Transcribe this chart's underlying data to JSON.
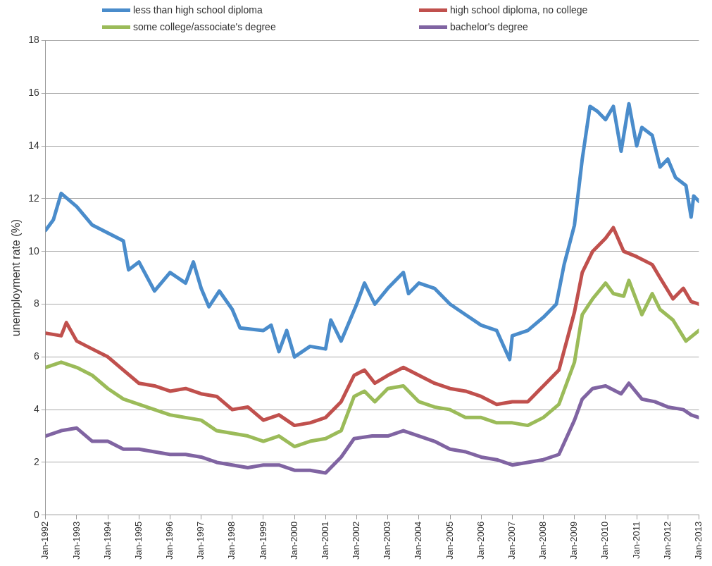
{
  "chart_data": {
    "type": "line",
    "ylabel": "unemployment rate (%)",
    "xlim": [
      "1992-01",
      "2013-01"
    ],
    "xticks": [
      {
        "value": "1992-01",
        "label": "Jan-1992"
      },
      {
        "value": "1993-01",
        "label": "Jan-1993"
      },
      {
        "value": "1994-01",
        "label": "Jan-1994"
      },
      {
        "value": "1995-01",
        "label": "Jan-1995"
      },
      {
        "value": "1996-01",
        "label": "Jan-1996"
      },
      {
        "value": "1997-01",
        "label": "Jan-1997"
      },
      {
        "value": "1998-01",
        "label": "Jan-1998"
      },
      {
        "value": "1999-01",
        "label": "Jan-1999"
      },
      {
        "value": "2000-01",
        "label": "Jan-2000"
      },
      {
        "value": "2001-01",
        "label": "Jan-2001"
      },
      {
        "value": "2002-01",
        "label": "Jan-2002"
      },
      {
        "value": "2003-01",
        "label": "Jan-2003"
      },
      {
        "value": "2004-01",
        "label": "Jan-2004"
      },
      {
        "value": "2005-01",
        "label": "Jan-2005"
      },
      {
        "value": "2006-01",
        "label": "Jan-2006"
      },
      {
        "value": "2007-01",
        "label": "Jan-2007"
      },
      {
        "value": "2008-01",
        "label": "Jan-2008"
      },
      {
        "value": "2009-01",
        "label": "Jan-2009"
      },
      {
        "value": "2010-01",
        "label": "Jan-2010"
      },
      {
        "value": "2011-01",
        "label": "Jan-2011"
      },
      {
        "value": "2012-01",
        "label": "Jan-2012"
      },
      {
        "value": "2013-01",
        "label": "Jan-2013"
      }
    ],
    "ylim": [
      0,
      18
    ],
    "yticks": [
      0,
      2,
      4,
      6,
      8,
      10,
      12,
      14,
      16,
      18
    ],
    "grid": "y",
    "legend": "top",
    "marker": "none",
    "line_style": "solid",
    "series": [
      {
        "name": "less than high school diploma",
        "color": "#4a8ccb",
        "x": [
          "1992-01",
          "1992-04",
          "1992-07",
          "1993-01",
          "1993-07",
          "1994-01",
          "1994-07",
          "1994-09",
          "1995-01",
          "1995-07",
          "1996-01",
          "1996-07",
          "1996-10",
          "1997-01",
          "1997-04",
          "1997-08",
          "1998-01",
          "1998-04",
          "1999-01",
          "1999-04",
          "1999-07",
          "1999-10",
          "2000-01",
          "2000-07",
          "2001-01",
          "2001-03",
          "2001-07",
          "2002-01",
          "2002-04",
          "2002-08",
          "2003-01",
          "2003-07",
          "2003-09",
          "2004-01",
          "2004-07",
          "2005-01",
          "2005-07",
          "2006-01",
          "2006-07",
          "2006-12",
          "2007-01",
          "2007-07",
          "2008-01",
          "2008-06",
          "2008-09",
          "2009-01",
          "2009-04",
          "2009-07",
          "2009-10",
          "2010-01",
          "2010-04",
          "2010-07",
          "2010-10",
          "2011-01",
          "2011-03",
          "2011-07",
          "2011-10",
          "2012-01",
          "2012-04",
          "2012-08",
          "2012-10",
          "2012-11",
          "2013-01"
        ],
        "values": [
          10.8,
          11.2,
          12.2,
          11.7,
          11,
          10.7,
          10.4,
          9.3,
          9.6,
          8.5,
          9.2,
          8.8,
          9.6,
          8.6,
          7.9,
          8.5,
          7.8,
          7.1,
          7,
          7.2,
          6.2,
          7,
          6,
          6.4,
          6.3,
          7.4,
          6.6,
          8,
          8.8,
          8,
          8.6,
          9.2,
          8.4,
          8.8,
          8.6,
          8,
          7.6,
          7.2,
          7,
          5.9,
          6.8,
          7,
          7.5,
          8,
          9.5,
          11,
          13.5,
          15.5,
          15.3,
          15,
          15.5,
          13.8,
          15.6,
          14,
          14.7,
          14.4,
          13.2,
          13.5,
          12.8,
          12.5,
          11.3,
          12.1,
          11.9
        ]
      },
      {
        "name": "high school diploma, no college",
        "color": "#c0504d",
        "x": [
          "1992-01",
          "1992-07",
          "1992-09",
          "1993-01",
          "1993-07",
          "1994-01",
          "1994-07",
          "1995-01",
          "1995-07",
          "1996-01",
          "1996-07",
          "1997-01",
          "1997-07",
          "1998-01",
          "1998-07",
          "1999-01",
          "1999-07",
          "2000-01",
          "2000-07",
          "2001-01",
          "2001-07",
          "2001-12",
          "2002-04",
          "2002-08",
          "2003-01",
          "2003-07",
          "2004-01",
          "2004-07",
          "2005-01",
          "2005-07",
          "2006-01",
          "2006-07",
          "2007-01",
          "2007-07",
          "2008-01",
          "2008-07",
          "2009-01",
          "2009-04",
          "2009-08",
          "2010-01",
          "2010-04",
          "2010-08",
          "2011-01",
          "2011-07",
          "2011-10",
          "2012-03",
          "2012-07",
          "2012-10",
          "2013-01"
        ],
        "values": [
          6.9,
          6.8,
          7.3,
          6.6,
          6.3,
          6,
          5.5,
          5,
          4.9,
          4.7,
          4.8,
          4.6,
          4.5,
          4,
          4.1,
          3.6,
          3.8,
          3.4,
          3.5,
          3.7,
          4.3,
          5.3,
          5.5,
          5,
          5.3,
          5.6,
          5.3,
          5,
          4.8,
          4.7,
          4.5,
          4.2,
          4.3,
          4.3,
          4.9,
          5.5,
          7.7,
          9.2,
          10,
          10.5,
          10.9,
          10,
          9.8,
          9.5,
          9,
          8.2,
          8.6,
          8.1,
          8
        ]
      },
      {
        "name": "some college/associate's degree",
        "color": "#9bbb59",
        "x": [
          "1992-01",
          "1992-07",
          "1993-01",
          "1993-07",
          "1994-01",
          "1994-07",
          "1995-01",
          "1995-07",
          "1996-01",
          "1996-07",
          "1997-01",
          "1997-07",
          "1998-01",
          "1998-07",
          "1999-01",
          "1999-07",
          "2000-01",
          "2000-07",
          "2001-01",
          "2001-07",
          "2001-12",
          "2002-04",
          "2002-08",
          "2003-01",
          "2003-07",
          "2004-01",
          "2004-07",
          "2005-01",
          "2005-07",
          "2006-01",
          "2006-07",
          "2007-01",
          "2007-07",
          "2008-01",
          "2008-07",
          "2009-01",
          "2009-04",
          "2009-08",
          "2010-01",
          "2010-04",
          "2010-08",
          "2010-10",
          "2011-03",
          "2011-07",
          "2011-10",
          "2012-03",
          "2012-08",
          "2013-01"
        ],
        "values": [
          5.6,
          5.8,
          5.6,
          5.3,
          4.8,
          4.4,
          4.2,
          4,
          3.8,
          3.7,
          3.6,
          3.2,
          3.1,
          3,
          2.8,
          3,
          2.6,
          2.8,
          2.9,
          3.2,
          4.5,
          4.7,
          4.3,
          4.8,
          4.9,
          4.3,
          4.1,
          4,
          3.7,
          3.7,
          3.5,
          3.5,
          3.4,
          3.7,
          4.2,
          5.8,
          7.6,
          8.2,
          8.8,
          8.4,
          8.3,
          8.9,
          7.6,
          8.4,
          7.8,
          7.4,
          6.6,
          7
        ]
      },
      {
        "name": "bachelor's degree",
        "color": "#8064a2",
        "x": [
          "1992-01",
          "1992-07",
          "1993-01",
          "1993-07",
          "1994-01",
          "1994-07",
          "1995-01",
          "1995-07",
          "1996-01",
          "1996-07",
          "1997-01",
          "1997-07",
          "1998-01",
          "1998-07",
          "1999-01",
          "1999-07",
          "2000-01",
          "2000-07",
          "2001-01",
          "2001-07",
          "2001-12",
          "2002-07",
          "2003-01",
          "2003-07",
          "2004-01",
          "2004-07",
          "2005-01",
          "2005-07",
          "2006-01",
          "2006-07",
          "2007-01",
          "2007-07",
          "2008-01",
          "2008-07",
          "2009-01",
          "2009-04",
          "2009-08",
          "2010-01",
          "2010-07",
          "2010-10",
          "2011-03",
          "2011-08",
          "2012-01",
          "2012-07",
          "2012-10",
          "2013-01"
        ],
        "values": [
          3,
          3.2,
          3.3,
          2.8,
          2.8,
          2.5,
          2.5,
          2.4,
          2.3,
          2.3,
          2.2,
          2,
          1.9,
          1.8,
          1.9,
          1.9,
          1.7,
          1.7,
          1.6,
          2.2,
          2.9,
          3,
          3,
          3.2,
          3,
          2.8,
          2.5,
          2.4,
          2.2,
          2.1,
          1.9,
          2,
          2.1,
          2.3,
          3.6,
          4.4,
          4.8,
          4.9,
          4.6,
          5,
          4.4,
          4.3,
          4.1,
          4,
          3.8,
          3.7
        ]
      }
    ]
  }
}
